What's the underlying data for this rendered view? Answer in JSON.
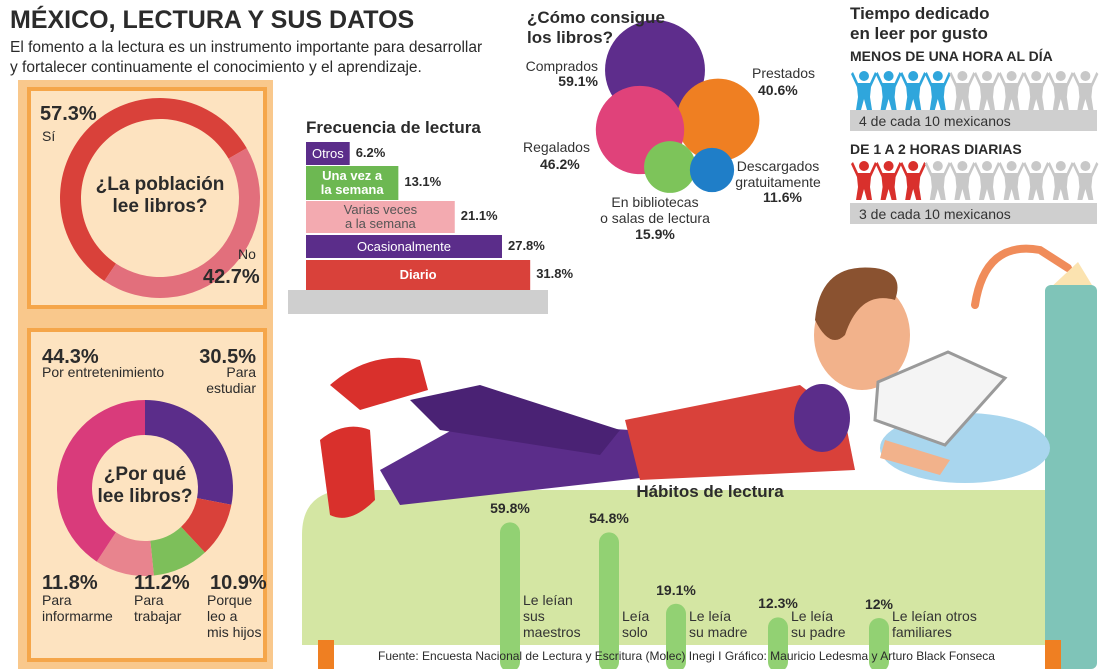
{
  "header": {
    "title": "MÉXICO, LECTURA Y SUS DATOS",
    "subtitle": "El fomento a la lectura es un instrumento importante para desarrollar\n y fortalecer continuamente el conocimiento y el aprendizaje."
  },
  "chart_data": [
    {
      "type": "donut",
      "title": "¿La población\nlee libros?",
      "categories": [
        "Sí",
        "No"
      ],
      "values": [
        57.3,
        42.7
      ],
      "value_labels": [
        "57.3%",
        "42.7%"
      ],
      "colors": [
        "#d9413a",
        "#e26f7c"
      ]
    },
    {
      "type": "donut",
      "title": "¿Por qué\nlee libros?",
      "categories": [
        "Para\nestudiar",
        "Porque\nleo a\nmis hijos",
        "Para\ntrabajar",
        "Para\ninformarme",
        "Por entretenimiento"
      ],
      "values": [
        30.5,
        10.9,
        11.2,
        11.8,
        44.3
      ],
      "value_labels": [
        "30.5%",
        "10.9%",
        "11.2%",
        "11.8%",
        "44.3%"
      ],
      "colors": [
        "#5b2d8a",
        "#d9413a",
        "#7dbf5a",
        "#e8848e",
        "#d93b7b"
      ]
    },
    {
      "type": "bar",
      "orientation": "horizontal",
      "title": "Frecuencia de lectura",
      "categories": [
        "Otros",
        "Una vez a\nla semana",
        "Varias veces\na la semana",
        "Ocasionalmente",
        "Diario"
      ],
      "values": [
        6.2,
        13.1,
        21.1,
        27.8,
        31.8
      ],
      "value_labels": [
        "6.2%",
        "13.1%",
        "21.1%",
        "27.8%",
        "31.8%"
      ],
      "colors": [
        "#5b2d8a",
        "#6db852",
        "#f3aab0",
        "#5b2d8a",
        "#d9413a"
      ]
    },
    {
      "type": "bubble",
      "title": "¿Cómo consigue\nlos libros?",
      "categories": [
        "Comprados",
        "Prestados",
        "Regalados",
        "En bibliotecas\no salas de lectura",
        "Descargados\ngratuitamente"
      ],
      "values": [
        59.1,
        40.6,
        46.2,
        15.9,
        11.6
      ],
      "value_labels": [
        "59.1%",
        "40.6%",
        "46.2%",
        "15.9%",
        "11.6%"
      ],
      "colors": [
        "#5e2d8c",
        "#ef7f22",
        "#e0427a",
        "#7dc45a",
        "#1f7ec8"
      ]
    },
    {
      "type": "pictograph",
      "title": "Tiempo dedicado\nen leer por gusto",
      "categories": [
        "MENOS DE UNA HORA AL DÍA",
        "DE 1 A 2 HORAS DIARIAS"
      ],
      "values": [
        4,
        3
      ],
      "totals": [
        10,
        10
      ],
      "value_labels": [
        "4 de cada 10 mexicanos",
        "3 de cada 10 mexicanos"
      ],
      "colors": [
        "#2fa6dc",
        "#d9302c"
      ]
    },
    {
      "type": "bar",
      "orientation": "vertical",
      "title": "Hábitos de lectura",
      "categories": [
        "Le leían\nsus\nmaestros",
        "Leía\nsolo",
        "Le leía\nsu madre",
        "Le leía\nsu padre",
        "Le leían otros\nfamiliares"
      ],
      "values": [
        59.8,
        54.8,
        19.1,
        12.3,
        12
      ],
      "value_labels": [
        "59.8%",
        "54.8%",
        "19.1%",
        "12.3%",
        "12%"
      ],
      "color": "#92d173"
    }
  ],
  "source": "Fuente: Encuesta Nacional de Lectura y Escritura (Molec) Inegi I Gráfico: Mauricio Ledesma y Arturo Black Fonseca"
}
